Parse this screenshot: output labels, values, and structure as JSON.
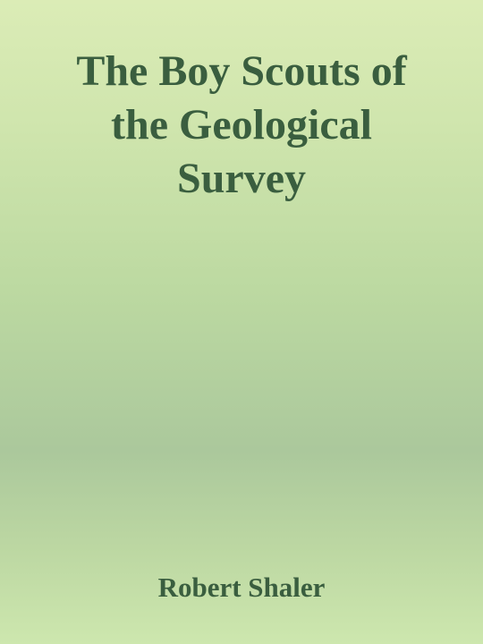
{
  "book": {
    "title_lines": [
      "The Boy Scouts of",
      "the Geological",
      "Survey"
    ],
    "author": "Robert Shaler"
  }
}
